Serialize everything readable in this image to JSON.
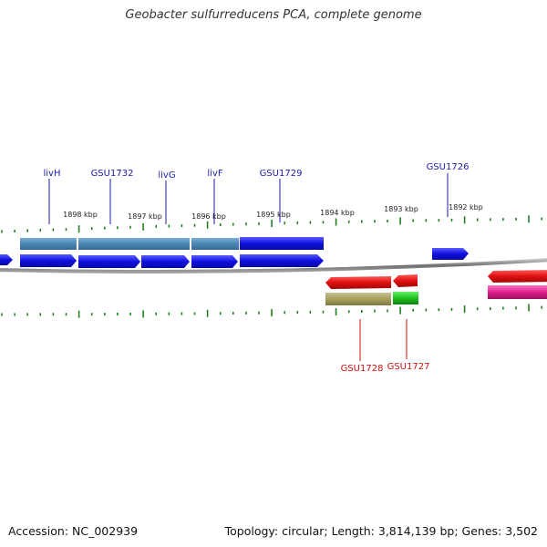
{
  "title": "Geobacter sulfurreducens PCA, complete genome",
  "footer": {
    "accession": "Accession: NC_002939",
    "summary": "Topology: circular; Length: 3,814,139 bp; Genes: 3,502"
  },
  "ruler_labels": [
    "1898 kbp",
    "1897 kbp",
    "1896 kbp",
    "1895 kbp",
    "1894 kbp",
    "1893 kbp",
    "1892 kbp"
  ],
  "gene_labels_top": [
    "livH",
    "GSU1732",
    "livG",
    "livF",
    "GSU1729",
    "GSU1726"
  ],
  "gene_labels_bottom": [
    "GSU1728",
    "GSU1727"
  ],
  "colors": {
    "forward_gene": "#1010e0",
    "operon_steel": "#4a86b4",
    "reverse_gene": "#e01010",
    "olive_feature": "#a8a060",
    "green_feature": "#20c020",
    "magenta_feature": "#e0208c",
    "backbone": "#808080",
    "tick": "#208020"
  }
}
